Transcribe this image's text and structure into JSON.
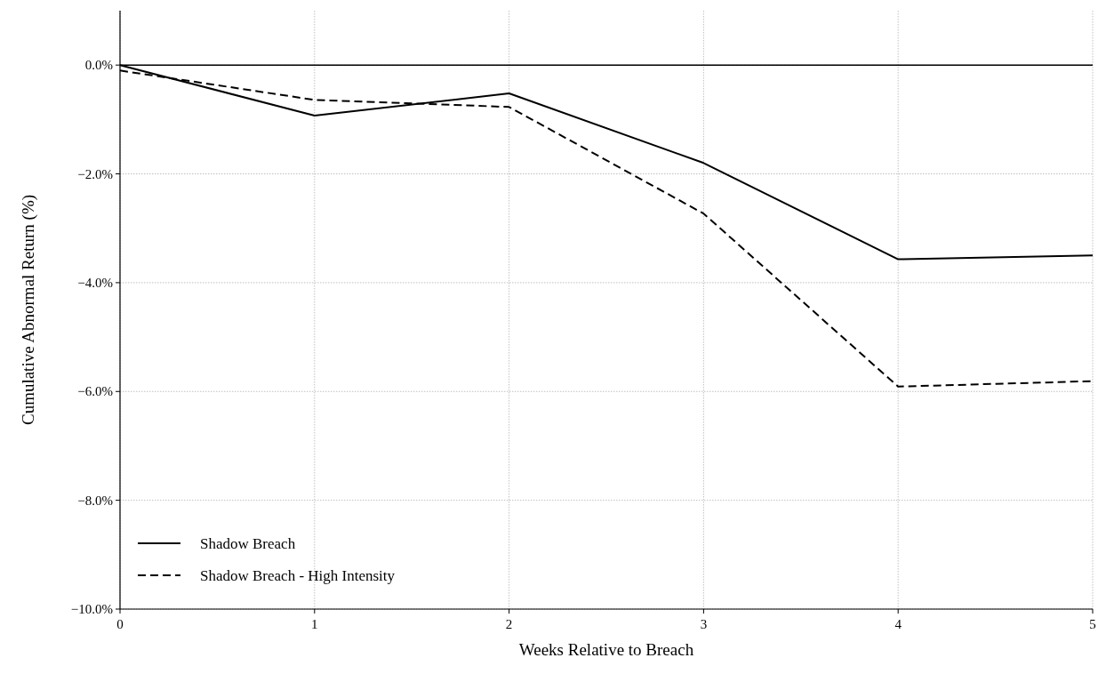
{
  "chart_data": {
    "type": "line",
    "xlabel": "Weeks Relative to Breach",
    "ylabel": "Cumulative Abnormal Return (%)",
    "x": [
      0,
      1,
      2,
      3,
      4,
      5
    ],
    "series": [
      {
        "name": "Shadow Breach",
        "color": "#000000",
        "line_style": "solid",
        "values": [
          0.0,
          -0.93,
          -0.52,
          -1.8,
          -3.57,
          -3.5
        ]
      },
      {
        "name": "Shadow Breach - High Intensity",
        "color": "#000000",
        "line_style": "dashed",
        "values": [
          -0.1,
          -0.64,
          -0.77,
          -2.73,
          -5.91,
          -5.81
        ]
      }
    ],
    "xlim": [
      0,
      5
    ],
    "xticks": [
      0,
      1,
      2,
      3,
      4,
      5
    ],
    "ylim": [
      -10,
      1
    ],
    "yticks": [
      {
        "value": -10,
        "label": "−10.0%"
      },
      {
        "value": -8,
        "label": "−8.0%"
      },
      {
        "value": -6,
        "label": "−6.0%"
      },
      {
        "value": -4,
        "label": "−4.0%"
      },
      {
        "value": -2,
        "label": "−2.0%"
      },
      {
        "value": 0,
        "label": "0.0%"
      }
    ],
    "ref_lines": [
      {
        "axis": "y",
        "value": 0,
        "color": "#000000"
      }
    ],
    "grid": true,
    "legend": "bottom left"
  }
}
